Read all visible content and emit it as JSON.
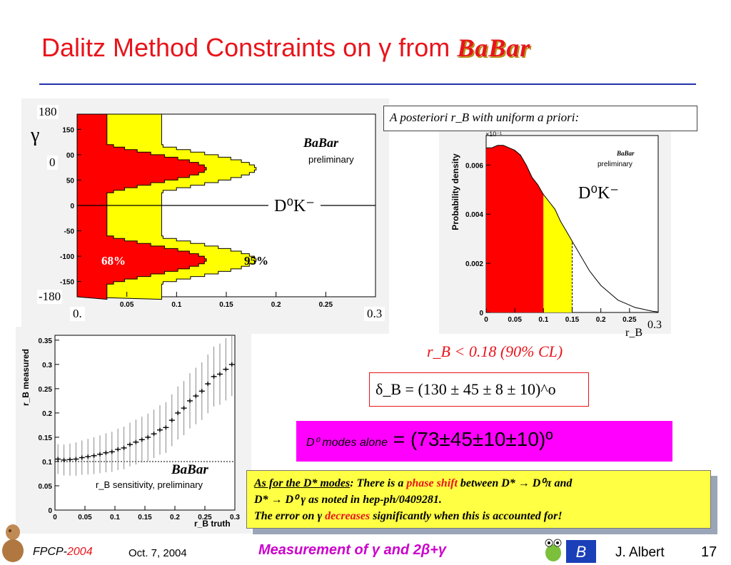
{
  "title": {
    "text": "Dalitz Method Constraints on γ from",
    "logo": "BaBar"
  },
  "left_plot": {
    "gamma_label": "γ",
    "top_left": "180",
    "left_mid": "0",
    "bottom_left": "-180",
    "x_start": "0.",
    "x_end": "0.3",
    "y_ticks": [
      "150",
      "00",
      "50",
      "0",
      "-50",
      "-100",
      "-150"
    ],
    "x_ticks": [
      "0.05",
      "0.1",
      "0.15",
      "0.2",
      "0.25"
    ],
    "logo": "BaBar",
    "preliminary": "preliminary",
    "mode": "D⁰K⁻",
    "cl68": "68%",
    "cl95": "95%"
  },
  "right_plot": {
    "header": "A posteriori r_B with uniform a priori:",
    "ylabel": "Probability density",
    "exp": "×10⁻¹",
    "y_ticks": [
      "0.006",
      "0.004",
      "0.002",
      "0"
    ],
    "x_ticks": [
      "0",
      "0.05",
      "0.1",
      "0.15",
      "0.2",
      "0.25"
    ],
    "logo": "BaBar",
    "preliminary": "preliminary",
    "mode": "D⁰K⁻",
    "x_end": "0.3",
    "x_label": "r_B"
  },
  "bottom_plot": {
    "ylabel": "r_B measured",
    "xlabel": "r_B truth",
    "y_ticks": [
      "0.35",
      "0.3",
      "0.25",
      "0.2",
      "0.15",
      "0.1",
      "0.05",
      "0"
    ],
    "x_ticks": [
      "0",
      "0.05",
      "0.1",
      "0.15",
      "0.2",
      "0.25",
      "0.3"
    ],
    "logo": "BaBar",
    "caption": "r_B sensitivity, preliminary"
  },
  "results": {
    "rb_limit": "r_B < 0.18  (90% CL)",
    "delta": "δ_B = (130 ± 45 ± 8 ± 10)^o",
    "gamma_sub": "D⁰ modes alone",
    "gamma_val": " = (73±45±10±10)º"
  },
  "note": {
    "l1a": "As for the D* modes",
    "l1b": ": There is a ",
    "l1c": "phase shift",
    "l1d": " between D* → D⁰π and",
    "l2": "D* → D⁰ γ as noted in hep-ph/0409281.",
    "l3a": "The error on γ ",
    "l3b": "decreases",
    "l3c": " significantly when this is accounted for!"
  },
  "footer": {
    "conf": "FPCP-",
    "year": "2004",
    "date": "Oct. 7, 2004",
    "talk": "Measurement of γ and 2β+γ",
    "author": "J. Albert",
    "page": "17"
  },
  "colors": {
    "title": "#e8141b",
    "rule": "#2233aa",
    "cl68": "#ff0000",
    "cl95": "#ffff00",
    "gamma_box": "#ff00ff",
    "note_bg": "#ffff44"
  },
  "chart_data": [
    {
      "type": "area",
      "title": "",
      "xlabel": "",
      "ylabel": "γ",
      "xlim": [
        0,
        0.3
      ],
      "ylim": [
        -180,
        180
      ],
      "series": [
        {
          "name": "68%",
          "values": []
        },
        {
          "name": "95%",
          "values": []
        }
      ]
    },
    {
      "type": "line",
      "title": "",
      "xlabel": "r_B",
      "ylabel": "Probability density",
      "xlim": [
        0,
        0.3
      ],
      "ylim": [
        0,
        0.0072
      ],
      "x": [
        0,
        0.01,
        0.02,
        0.03,
        0.04,
        0.05,
        0.06,
        0.07,
        0.08,
        0.09,
        0.1,
        0.11,
        0.12,
        0.13,
        0.14,
        0.15,
        0.16,
        0.17,
        0.18,
        0.19,
        0.2,
        0.21,
        0.22,
        0.23,
        0.24,
        0.25,
        0.26,
        0.27,
        0.28,
        0.29,
        0.3
      ],
      "series": [
        {
          "name": "",
          "values": [
            0.0067,
            0.0067,
            0.0068,
            0.0068,
            0.0067,
            0.0066,
            0.0064,
            0.006,
            0.0055,
            0.0052,
            0.0048,
            0.0045,
            0.0042,
            0.0037,
            0.0033,
            0.0029,
            0.0025,
            0.0021,
            0.0017,
            0.0014,
            0.0011,
            0.0009,
            0.0007,
            0.0005,
            0.0004,
            0.0003,
            0.0002,
            0.00015,
            0.0001,
            5e-05,
            2e-05
          ]
        }
      ]
    },
    {
      "type": "scatter",
      "title": "",
      "xlabel": "r_B truth",
      "ylabel": "r_B measured",
      "xlim": [
        0,
        0.3
      ],
      "ylim": [
        0,
        0.36
      ],
      "x": [
        0.005,
        0.015,
        0.025,
        0.035,
        0.045,
        0.055,
        0.065,
        0.075,
        0.085,
        0.095,
        0.105,
        0.115,
        0.125,
        0.135,
        0.145,
        0.155,
        0.165,
        0.175,
        0.185,
        0.195,
        0.205,
        0.215,
        0.225,
        0.235,
        0.245,
        0.255,
        0.265,
        0.275,
        0.285,
        0.295
      ],
      "series": [
        {
          "name": "",
          "values": [
            0.105,
            0.103,
            0.104,
            0.105,
            0.108,
            0.11,
            0.112,
            0.115,
            0.118,
            0.12,
            0.125,
            0.128,
            0.135,
            0.14,
            0.145,
            0.15,
            0.157,
            0.165,
            0.17,
            0.185,
            0.2,
            0.21,
            0.225,
            0.235,
            0.245,
            0.26,
            0.275,
            0.28,
            0.29,
            0.3
          ]
        }
      ]
    }
  ]
}
